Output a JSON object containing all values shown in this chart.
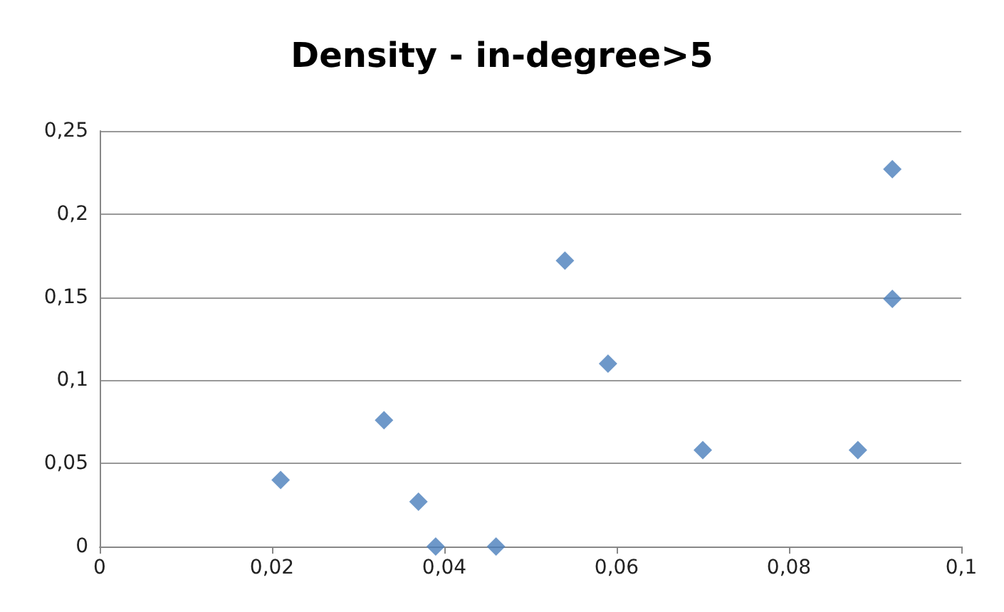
{
  "chart_data": {
    "type": "scatter",
    "title": "Density - in-degree>5",
    "x": [
      0.021,
      0.033,
      0.037,
      0.039,
      0.046,
      0.054,
      0.059,
      0.07,
      0.088,
      0.092,
      0.092
    ],
    "values": [
      0.04,
      0.076,
      0.027,
      0,
      0,
      0.172,
      0.11,
      0.058,
      0.058,
      0.227,
      0.149
    ],
    "color": "#4a7ebb",
    "marker": "diamond",
    "xlim": [
      0,
      0.1
    ],
    "xticks": [
      {
        "value": 0,
        "label": "0"
      },
      {
        "value": 0.02,
        "label": "0,02"
      },
      {
        "value": 0.04,
        "label": "0,04"
      },
      {
        "value": 0.06,
        "label": "0,06"
      },
      {
        "value": 0.08,
        "label": "0,08"
      },
      {
        "value": 0.1,
        "label": "0,1"
      }
    ],
    "ylim": [
      0,
      0.25
    ],
    "yticks": [
      {
        "value": 0,
        "label": "0"
      },
      {
        "value": 0.05,
        "label": "0,05"
      },
      {
        "value": 0.1,
        "label": "0,1"
      },
      {
        "value": 0.15,
        "label": "0,15"
      },
      {
        "value": 0.2,
        "label": "0,2"
      },
      {
        "value": 0.25,
        "label": "0,25"
      }
    ],
    "grid": "y"
  }
}
